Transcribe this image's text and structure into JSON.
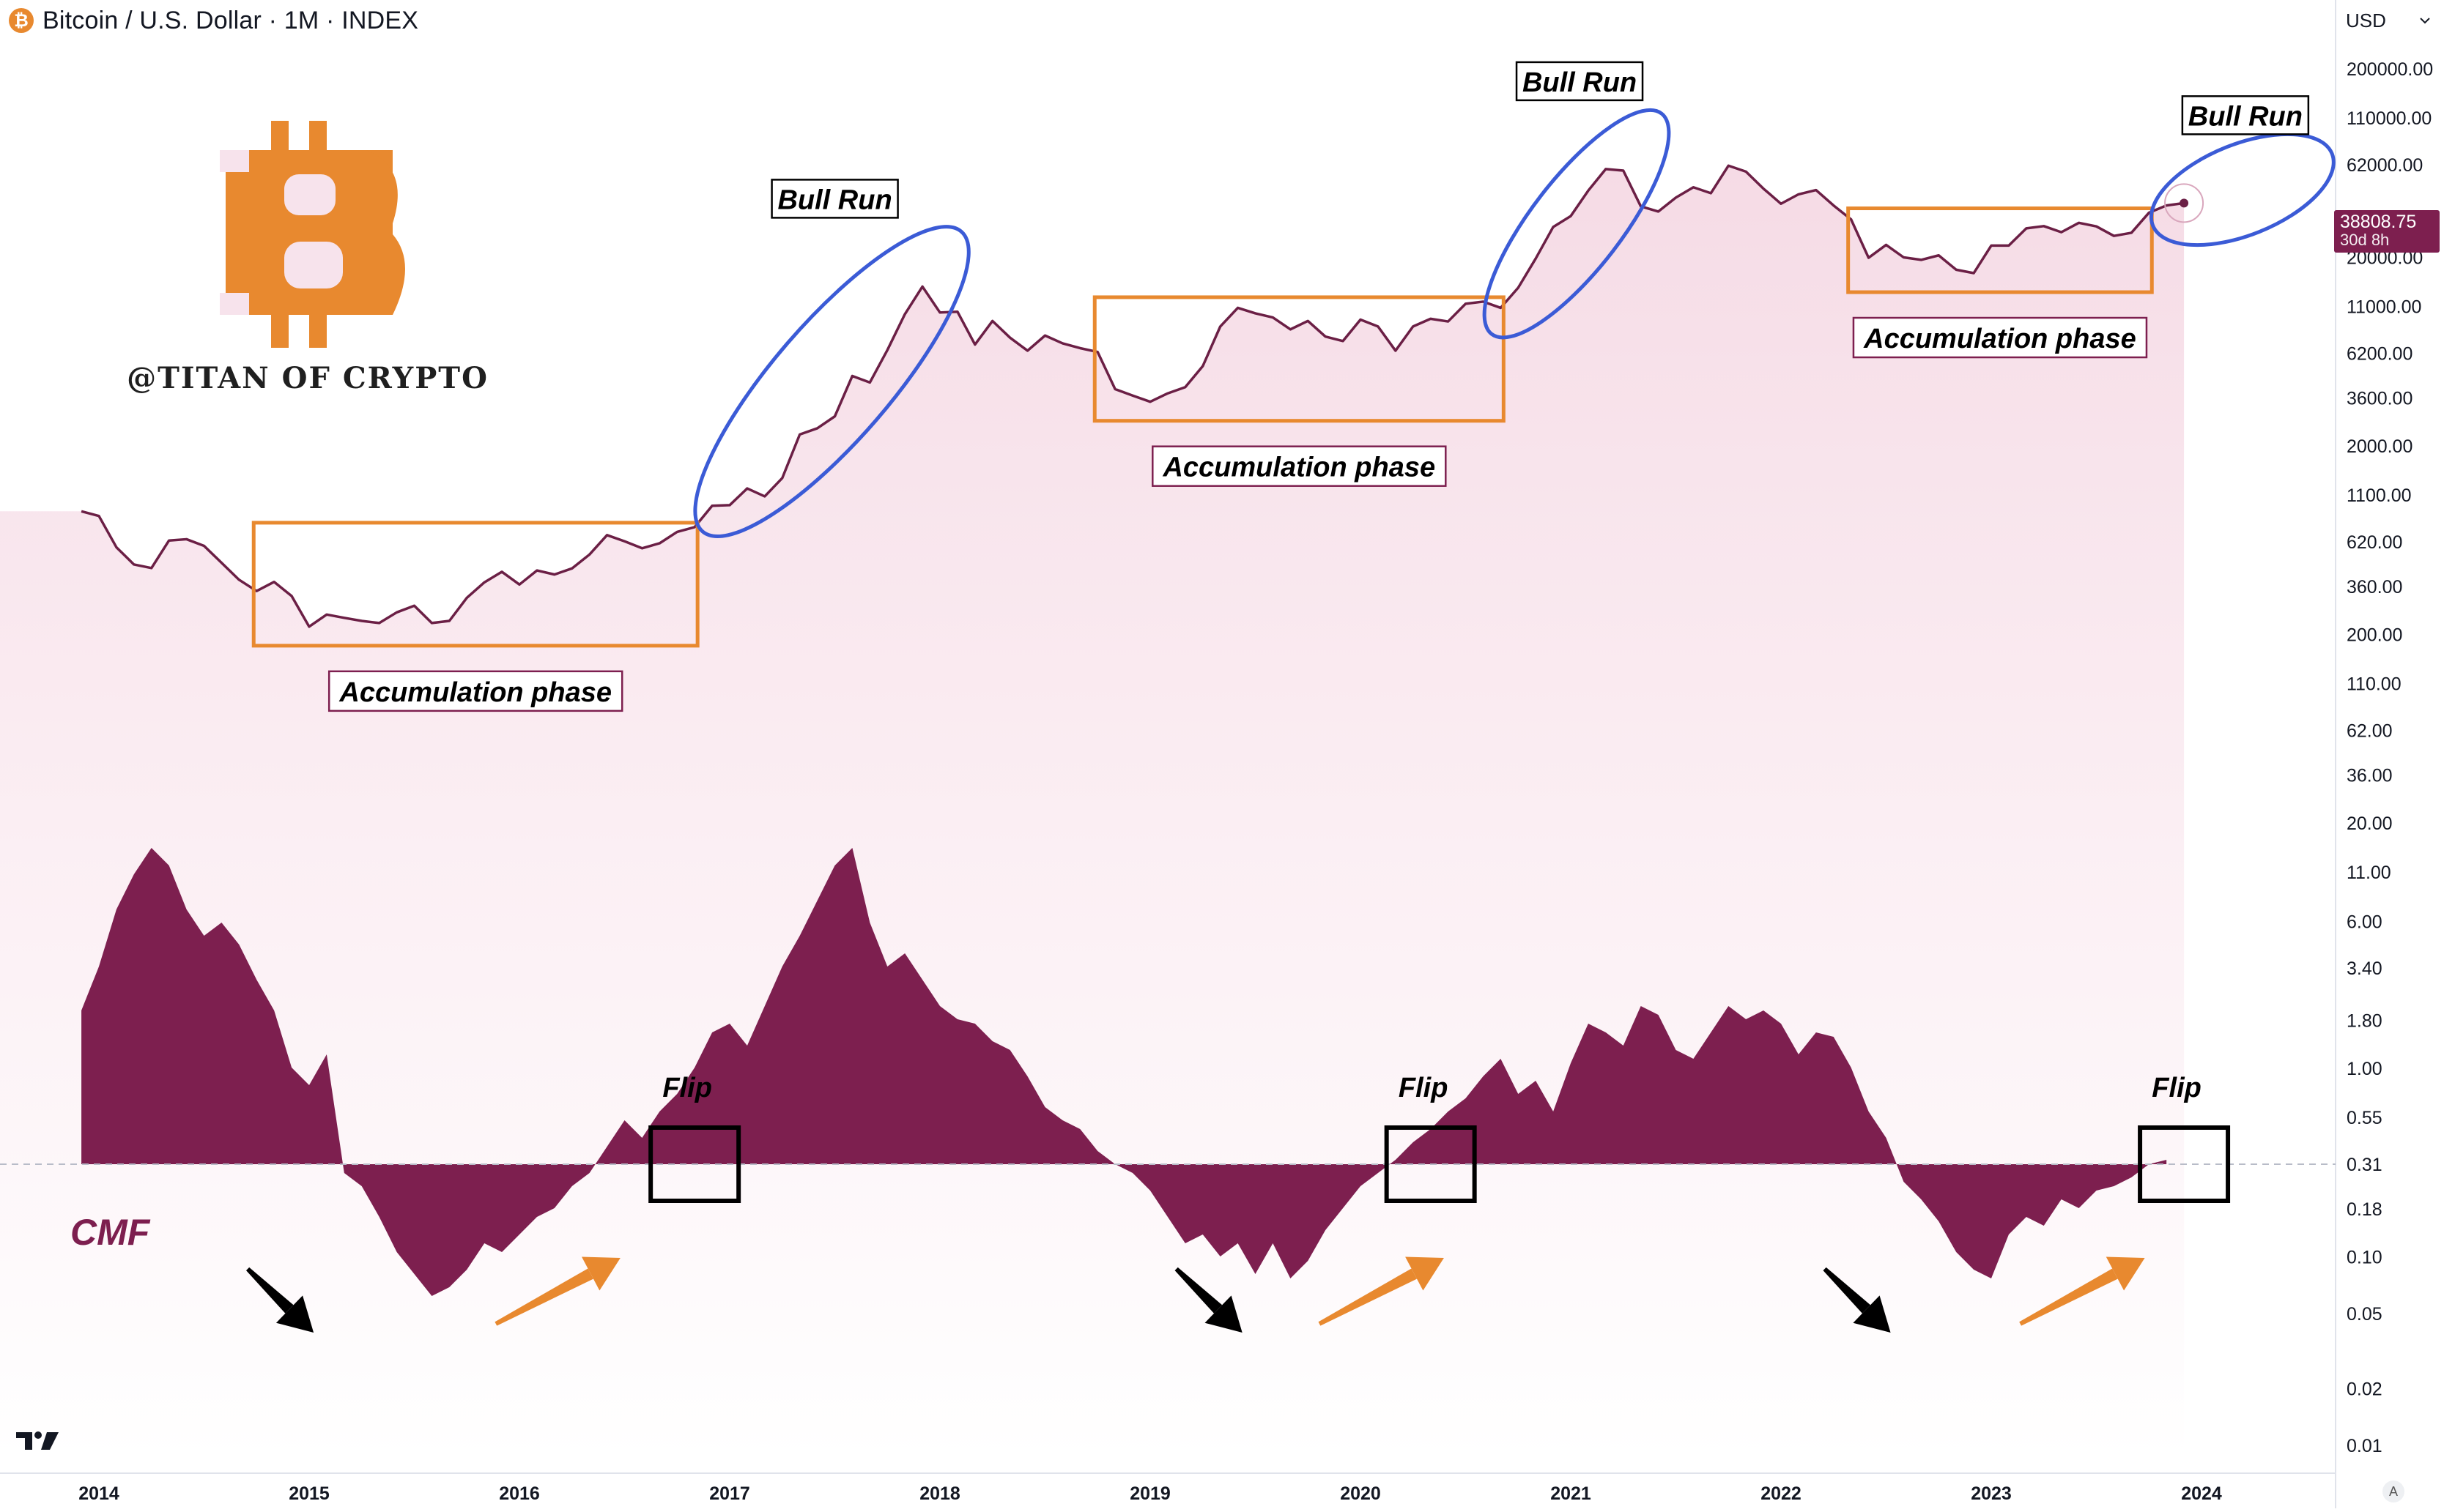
{
  "header": {
    "symbol_icon_glyph": "₿",
    "symbol_icon_color": "#e8892f",
    "title": "Bitcoin / U.S. Dollar · 1M · INDEX"
  },
  "currency_selector": {
    "label": "USD",
    "chevron_icon": "chevron-down-icon"
  },
  "last_price": {
    "value": "38808.75",
    "countdown": "30d 8h",
    "color": "#7d1f4f"
  },
  "watermark": {
    "text": "@TITAN OF CRYPTO",
    "logo": "bitcoin-logo",
    "color": "#e8892f"
  },
  "indicator_label": "CMF",
  "auto_scale_label": "A",
  "colors": {
    "price_line": "#6b1f45",
    "cmf_fill": "#7d1f4f",
    "accumulation_box": "#e8892f",
    "bull_run_ellipse": "#3b5bd6",
    "flip_box": "#000000",
    "arrow_down": "#000000",
    "arrow_up": "#e8892f"
  },
  "chart_data": [
    {
      "type": "line",
      "scale": "log",
      "series": [
        {
          "values": [
            {
              "x": "2013-12",
              "y": 900
            },
            {
              "x": "2014-01",
              "y": 850
            },
            {
              "x": "2014-02",
              "y": 580
            },
            {
              "x": "2014-03",
              "y": 470
            },
            {
              "x": "2014-04",
              "y": 450
            },
            {
              "x": "2014-05",
              "y": 630
            },
            {
              "x": "2014-06",
              "y": 640
            },
            {
              "x": "2014-07",
              "y": 590
            },
            {
              "x": "2014-08",
              "y": 480
            },
            {
              "x": "2014-09",
              "y": 390
            },
            {
              "x": "2014-10",
              "y": 340
            },
            {
              "x": "2014-11",
              "y": 380
            },
            {
              "x": "2014-12",
              "y": 320
            },
            {
              "x": "2015-01",
              "y": 220
            },
            {
              "x": "2015-02",
              "y": 255
            },
            {
              "x": "2015-03",
              "y": 245
            },
            {
              "x": "2015-04",
              "y": 236
            },
            {
              "x": "2015-05",
              "y": 230
            },
            {
              "x": "2015-06",
              "y": 262
            },
            {
              "x": "2015-07",
              "y": 284
            },
            {
              "x": "2015-08",
              "y": 230
            },
            {
              "x": "2015-09",
              "y": 236
            },
            {
              "x": "2015-10",
              "y": 313
            },
            {
              "x": "2015-11",
              "y": 378
            },
            {
              "x": "2015-12",
              "y": 430
            },
            {
              "x": "2016-01",
              "y": 368
            },
            {
              "x": "2016-02",
              "y": 437
            },
            {
              "x": "2016-03",
              "y": 416
            },
            {
              "x": "2016-04",
              "y": 448
            },
            {
              "x": "2016-05",
              "y": 531
            },
            {
              "x": "2016-06",
              "y": 673
            },
            {
              "x": "2016-07",
              "y": 624
            },
            {
              "x": "2016-08",
              "y": 573
            },
            {
              "x": "2016-09",
              "y": 609
            },
            {
              "x": "2016-10",
              "y": 700
            },
            {
              "x": "2016-11",
              "y": 742
            },
            {
              "x": "2016-12",
              "y": 963
            },
            {
              "x": "2017-01",
              "y": 970
            },
            {
              "x": "2017-02",
              "y": 1190
            },
            {
              "x": "2017-03",
              "y": 1080
            },
            {
              "x": "2017-04",
              "y": 1350
            },
            {
              "x": "2017-05",
              "y": 2300
            },
            {
              "x": "2017-06",
              "y": 2480
            },
            {
              "x": "2017-07",
              "y": 2870
            },
            {
              "x": "2017-08",
              "y": 4700
            },
            {
              "x": "2017-09",
              "y": 4340
            },
            {
              "x": "2017-10",
              "y": 6450
            },
            {
              "x": "2017-11",
              "y": 10000
            },
            {
              "x": "2017-12",
              "y": 14000
            },
            {
              "x": "2018-01",
              "y": 10200
            },
            {
              "x": "2018-02",
              "y": 10300
            },
            {
              "x": "2018-03",
              "y": 6900
            },
            {
              "x": "2018-04",
              "y": 9200
            },
            {
              "x": "2018-05",
              "y": 7500
            },
            {
              "x": "2018-06",
              "y": 6400
            },
            {
              "x": "2018-07",
              "y": 7700
            },
            {
              "x": "2018-08",
              "y": 7000
            },
            {
              "x": "2018-09",
              "y": 6600
            },
            {
              "x": "2018-10",
              "y": 6300
            },
            {
              "x": "2018-11",
              "y": 4000
            },
            {
              "x": "2018-12",
              "y": 3700
            },
            {
              "x": "2019-01",
              "y": 3430
            },
            {
              "x": "2019-02",
              "y": 3800
            },
            {
              "x": "2019-03",
              "y": 4100
            },
            {
              "x": "2019-04",
              "y": 5300
            },
            {
              "x": "2019-05",
              "y": 8600
            },
            {
              "x": "2019-06",
              "y": 10800
            },
            {
              "x": "2019-07",
              "y": 10100
            },
            {
              "x": "2019-08",
              "y": 9600
            },
            {
              "x": "2019-09",
              "y": 8300
            },
            {
              "x": "2019-10",
              "y": 9200
            },
            {
              "x": "2019-11",
              "y": 7600
            },
            {
              "x": "2019-12",
              "y": 7200
            },
            {
              "x": "2020-01",
              "y": 9350
            },
            {
              "x": "2020-02",
              "y": 8600
            },
            {
              "x": "2020-03",
              "y": 6400
            },
            {
              "x": "2020-04",
              "y": 8600
            },
            {
              "x": "2020-05",
              "y": 9450
            },
            {
              "x": "2020-06",
              "y": 9140
            },
            {
              "x": "2020-07",
              "y": 11350
            },
            {
              "x": "2020-08",
              "y": 11650
            },
            {
              "x": "2020-09",
              "y": 10800
            },
            {
              "x": "2020-10",
              "y": 13800
            },
            {
              "x": "2020-11",
              "y": 19700
            },
            {
              "x": "2020-12",
              "y": 29000
            },
            {
              "x": "2021-01",
              "y": 33100
            },
            {
              "x": "2021-02",
              "y": 45200
            },
            {
              "x": "2021-03",
              "y": 58800
            },
            {
              "x": "2021-04",
              "y": 57700
            },
            {
              "x": "2021-05",
              "y": 37300
            },
            {
              "x": "2021-06",
              "y": 35000
            },
            {
              "x": "2021-07",
              "y": 41500
            },
            {
              "x": "2021-08",
              "y": 47100
            },
            {
              "x": "2021-09",
              "y": 43800
            },
            {
              "x": "2021-10",
              "y": 61300
            },
            {
              "x": "2021-11",
              "y": 57000
            },
            {
              "x": "2021-12",
              "y": 46300
            },
            {
              "x": "2022-01",
              "y": 38500
            },
            {
              "x": "2022-02",
              "y": 43200
            },
            {
              "x": "2022-03",
              "y": 45500
            },
            {
              "x": "2022-04",
              "y": 37700
            },
            {
              "x": "2022-05",
              "y": 31800
            },
            {
              "x": "2022-06",
              "y": 19900
            },
            {
              "x": "2022-07",
              "y": 23300
            },
            {
              "x": "2022-08",
              "y": 20000
            },
            {
              "x": "2022-09",
              "y": 19400
            },
            {
              "x": "2022-10",
              "y": 20500
            },
            {
              "x": "2022-11",
              "y": 17200
            },
            {
              "x": "2022-12",
              "y": 16500
            },
            {
              "x": "2023-01",
              "y": 23100
            },
            {
              "x": "2023-02",
              "y": 23100
            },
            {
              "x": "2023-03",
              "y": 28500
            },
            {
              "x": "2023-04",
              "y": 29300
            },
            {
              "x": "2023-05",
              "y": 27200
            },
            {
              "x": "2023-06",
              "y": 30500
            },
            {
              "x": "2023-07",
              "y": 29200
            },
            {
              "x": "2023-08",
              "y": 26000
            },
            {
              "x": "2023-09",
              "y": 27000
            },
            {
              "x": "2023-10",
              "y": 34500
            },
            {
              "x": "2023-11",
              "y": 37700
            },
            {
              "x": "2023-12",
              "y": 38808.75
            }
          ]
        }
      ],
      "x_tick_labels": [
        "2014",
        "2015",
        "2016",
        "2017",
        "2018",
        "2019",
        "2020",
        "2021",
        "2022",
        "2023",
        "2024"
      ],
      "y_tick_labels": [
        "200000.00",
        "110000.00",
        "62000.00",
        "20000.00",
        "11000.00",
        "6200.00",
        "3600.00",
        "2000.00",
        "1100.00",
        "620.00",
        "360.00",
        "200.00",
        "110.00",
        "62.00",
        "36.00",
        "20.00",
        "11.00",
        "6.00",
        "3.40",
        "1.80",
        "1.00",
        "0.55",
        "0.31",
        "0.18",
        "0.10",
        "0.05",
        "0.02",
        "0.01"
      ],
      "ylim": [
        0.01,
        330000
      ],
      "annotations": [
        {
          "kind": "accumulation",
          "label": "Accumulation phase",
          "x_start": "2014-10",
          "x_end": "2016-11"
        },
        {
          "kind": "accumulation",
          "label": "Accumulation phase",
          "x_start": "2018-10",
          "x_end": "2020-09"
        },
        {
          "kind": "accumulation",
          "label": "Accumulation phase",
          "x_start": "2022-05",
          "x_end": "2023-10"
        },
        {
          "kind": "bull_run",
          "label": "Bull Run",
          "x_start": "2016-12",
          "x_end": "2017-12"
        },
        {
          "kind": "bull_run",
          "label": "Bull Run",
          "x_start": "2020-09",
          "x_end": "2021-04"
        },
        {
          "kind": "bull_run",
          "label": "Bull Run",
          "x_start": "2023-11",
          "x_end": "2024-06"
        }
      ]
    },
    {
      "type": "area",
      "name": "CMF",
      "values": [
        0.35,
        0.45,
        0.58,
        0.66,
        0.72,
        0.68,
        0.58,
        0.52,
        0.55,
        0.5,
        0.42,
        0.35,
        0.22,
        0.18,
        0.25,
        -0.02,
        -0.05,
        -0.12,
        -0.2,
        -0.25,
        -0.3,
        -0.28,
        -0.24,
        -0.18,
        -0.2,
        -0.16,
        -0.12,
        -0.1,
        -0.05,
        -0.02,
        0.04,
        0.1,
        0.06,
        0.12,
        0.16,
        0.22,
        0.3,
        0.32,
        0.27,
        0.36,
        0.45,
        0.52,
        0.6,
        0.68,
        0.72,
        0.55,
        0.45,
        0.48,
        0.42,
        0.36,
        0.33,
        0.32,
        0.28,
        0.26,
        0.2,
        0.13,
        0.1,
        0.08,
        0.03,
        0.0,
        -0.02,
        -0.06,
        -0.12,
        -0.18,
        -0.16,
        -0.21,
        -0.18,
        -0.25,
        -0.18,
        -0.26,
        -0.22,
        -0.15,
        -0.1,
        -0.05,
        -0.02,
        0.01,
        0.05,
        0.08,
        0.12,
        0.15,
        0.2,
        0.24,
        0.16,
        0.19,
        0.12,
        0.23,
        0.32,
        0.3,
        0.27,
        0.36,
        0.34,
        0.26,
        0.24,
        0.3,
        0.36,
        0.33,
        0.35,
        0.32,
        0.25,
        0.3,
        0.29,
        0.22,
        0.12,
        0.06,
        -0.04,
        -0.08,
        -0.13,
        -0.2,
        -0.24,
        -0.26,
        -0.16,
        -0.12,
        -0.14,
        -0.08,
        -0.1,
        -0.06,
        -0.05,
        -0.03,
        0.0,
        0.01
      ],
      "start": "2013-12",
      "annotations": [
        {
          "kind": "flip",
          "label": "Flip",
          "date": "2016-11"
        },
        {
          "kind": "flip",
          "label": "Flip",
          "date": "2020-05"
        },
        {
          "kind": "flip",
          "label": "Flip",
          "date": "2023-12"
        }
      ],
      "arrows": [
        {
          "color": "black",
          "direction": "down"
        },
        {
          "color": "orange",
          "direction": "up"
        },
        {
          "color": "black",
          "direction": "down"
        },
        {
          "color": "orange",
          "direction": "up"
        },
        {
          "color": "black",
          "direction": "down"
        },
        {
          "color": "orange",
          "direction": "up"
        }
      ]
    }
  ]
}
